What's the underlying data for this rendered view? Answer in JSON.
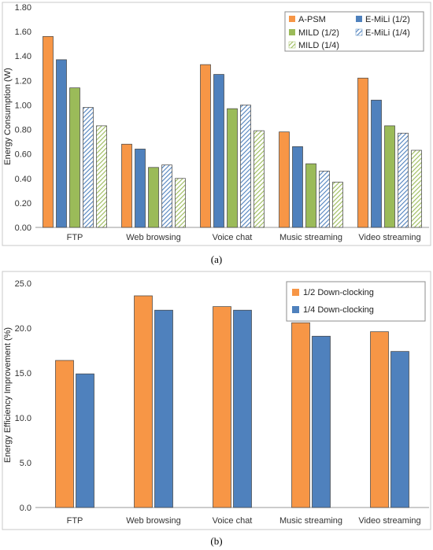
{
  "chart_data": [
    {
      "type": "bar",
      "caption": "(a)",
      "ylabel": "Energy Consumption (W)",
      "ylim": [
        0,
        1.8
      ],
      "yticks": [
        "0.00",
        "0.20",
        "0.40",
        "0.60",
        "0.80",
        "1.00",
        "1.20",
        "1.40",
        "1.60",
        "1.80"
      ],
      "grid": false,
      "legend_placement": "top-right",
      "categories": [
        "FTP",
        "Web browsing",
        "Voice chat",
        "Music streaming",
        "Video streaming"
      ],
      "series": [
        {
          "name": "A-PSM",
          "color": "#F79646",
          "pattern": "solid",
          "values": [
            1.56,
            0.68,
            1.33,
            0.78,
            1.22
          ]
        },
        {
          "name": "E-MiLi (1/2)",
          "color": "#4F81BD",
          "pattern": "solid",
          "values": [
            1.37,
            0.64,
            1.25,
            0.66,
            1.04
          ]
        },
        {
          "name": "MILD (1/2)",
          "color": "#9BBB59",
          "pattern": "solid",
          "values": [
            1.14,
            0.49,
            0.97,
            0.52,
            0.83
          ]
        },
        {
          "name": "E-MiLi (1/4)",
          "color": "#4F81BD",
          "pattern": "hatched",
          "values": [
            0.98,
            0.51,
            1.0,
            0.46,
            0.77
          ]
        },
        {
          "name": "MILD (1/4)",
          "color": "#9BBB59",
          "pattern": "hatched",
          "values": [
            0.83,
            0.4,
            0.79,
            0.37,
            0.63
          ]
        }
      ]
    },
    {
      "type": "bar",
      "caption": "(b)",
      "ylabel": "Energy Efficiency Improvement (%)",
      "ylim": [
        0,
        25
      ],
      "yticks": [
        "0.0",
        "5.0",
        "10.0",
        "15.0",
        "20.0",
        "25.0"
      ],
      "grid": false,
      "legend_placement": "top-right",
      "categories": [
        "FTP",
        "Web browsing",
        "Voice chat",
        "Music streaming",
        "Video streaming"
      ],
      "series": [
        {
          "name": "1/2 Down-clocking",
          "color": "#F79646",
          "pattern": "solid",
          "values": [
            16.4,
            23.6,
            22.4,
            20.6,
            19.6
          ]
        },
        {
          "name": "1/4 Down-clocking",
          "color": "#4F81BD",
          "pattern": "solid",
          "values": [
            14.9,
            22.0,
            22.0,
            19.1,
            17.4
          ]
        }
      ]
    }
  ]
}
